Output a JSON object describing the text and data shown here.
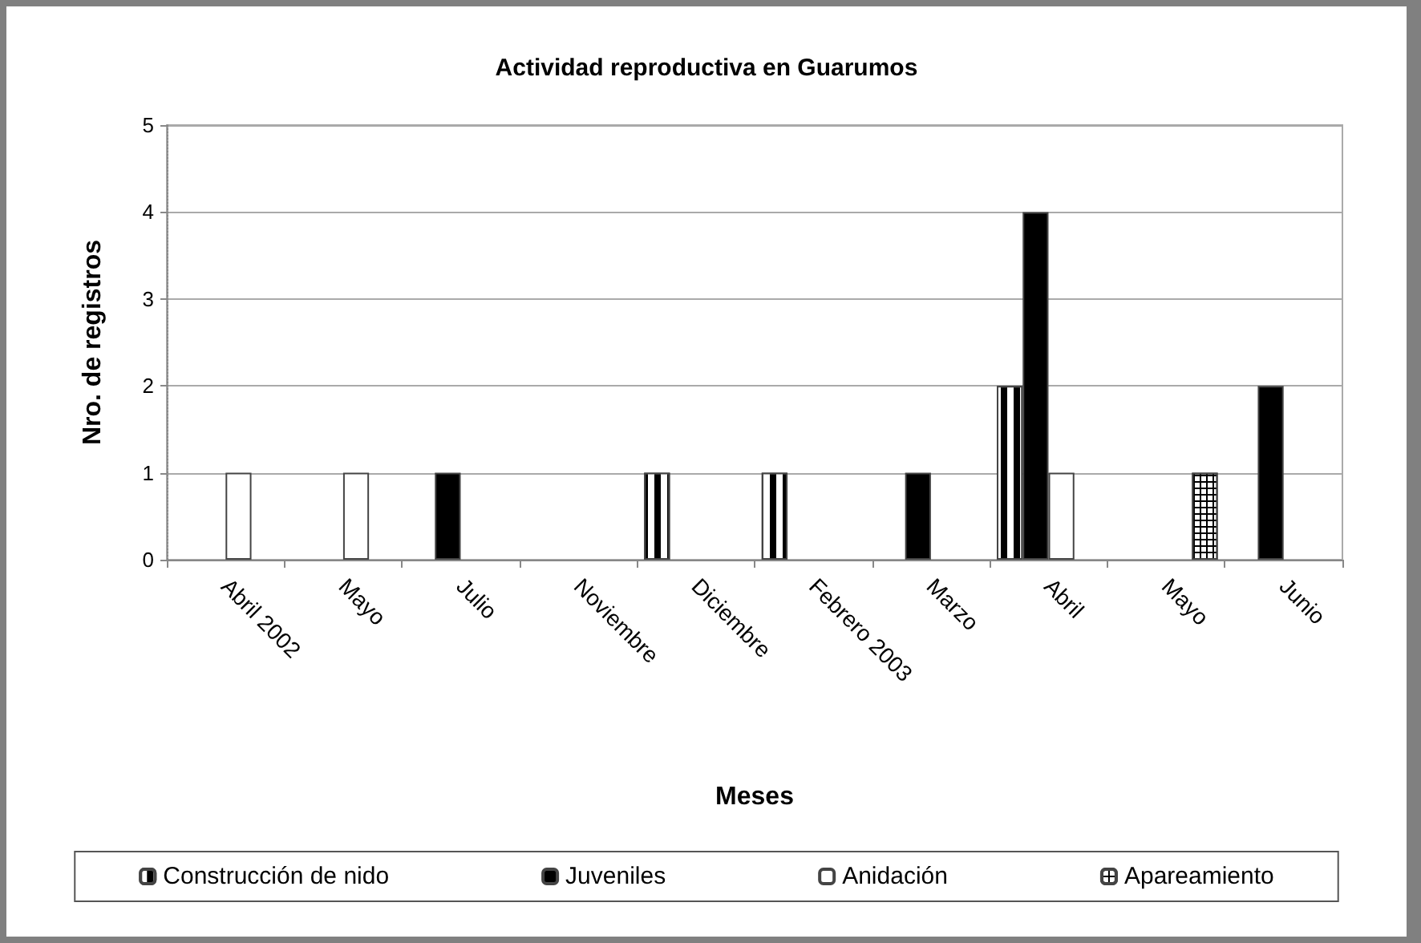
{
  "chart_data": {
    "type": "bar",
    "title": "Actividad reproductiva en Guarumos",
    "xlabel": "Meses",
    "ylabel": "Nro. de registros",
    "categories": [
      "Abril 2002",
      "Mayo",
      "Julio",
      "Noviembre",
      "Diciembre",
      "Febrero 2003",
      "Marzo",
      "Abril",
      "Mayo",
      "Junio"
    ],
    "series": [
      {
        "name": "Construcción de nido",
        "color": "#000000",
        "values": [
          null,
          null,
          null,
          null,
          1,
          1,
          null,
          2,
          null,
          null
        ]
      },
      {
        "name": "Juveniles",
        "color": "#000000",
        "values": [
          null,
          null,
          1,
          null,
          null,
          null,
          1,
          4,
          null,
          2
        ]
      },
      {
        "name": "Anidación",
        "color": "#ffffff",
        "values": [
          1,
          1,
          null,
          null,
          null,
          null,
          null,
          1,
          null,
          null
        ]
      },
      {
        "name": "Apareamiento",
        "color": "#ffffff",
        "values": [
          null,
          null,
          null,
          null,
          null,
          null,
          null,
          null,
          1,
          null
        ]
      }
    ],
    "ylim": [
      0,
      5
    ],
    "yticks": [
      0,
      1,
      2,
      3,
      4,
      5
    ],
    "grid": "y",
    "legend": "bottom"
  }
}
